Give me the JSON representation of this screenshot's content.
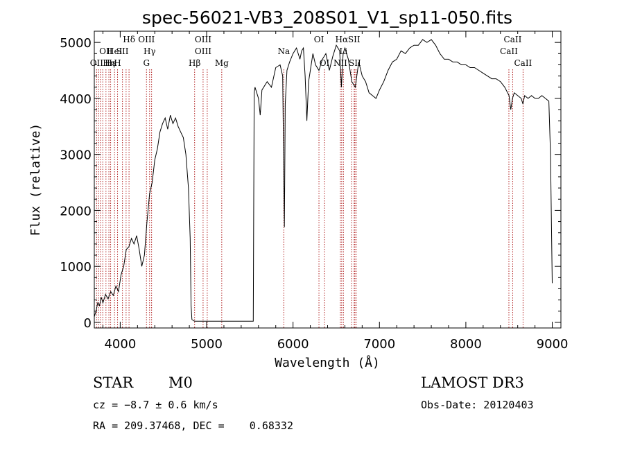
{
  "chart_data": {
    "type": "line",
    "title": "spec-56021-VB3_208S01_V1_sp11-050.fits",
    "xlabel": "Wavelength (Å)",
    "ylabel": "Flux (relative)",
    "xlim": [
      3700,
      9100
    ],
    "ylim": [
      -100,
      5200
    ],
    "xticks": [
      4000,
      5000,
      6000,
      7000,
      8000,
      9000
    ],
    "yticks": [
      0,
      1000,
      2000,
      3000,
      4000,
      5000
    ],
    "series": [
      {
        "x": [
          3700,
          3720,
          3740,
          3760,
          3780,
          3800,
          3830,
          3860,
          3890,
          3920,
          3950,
          3980,
          4010,
          4040,
          4070,
          4100,
          4130,
          4160,
          4190,
          4220,
          4250,
          4280,
          4310,
          4340,
          4370,
          4400,
          4430,
          4460,
          4490,
          4520,
          4550,
          4580,
          4610,
          4640,
          4670,
          4700,
          4730,
          4760,
          4790,
          4810,
          4820,
          4830,
          4860,
          5000,
          5200,
          5400,
          5540,
          5550,
          5560,
          5580,
          5600,
          5620,
          5640,
          5660,
          5700,
          5750,
          5800,
          5850,
          5880,
          5890,
          5900,
          5910,
          5930,
          5960,
          6000,
          6040,
          6080,
          6100,
          6120,
          6140,
          6160,
          6180,
          6200,
          6230,
          6260,
          6300,
          6340,
          6380,
          6420,
          6460,
          6500,
          6540,
          6560,
          6580,
          6600,
          6640,
          6680,
          6720,
          6760,
          6800,
          6840,
          6880,
          6920,
          6960,
          7000,
          7050,
          7100,
          7150,
          7200,
          7250,
          7300,
          7350,
          7400,
          7450,
          7500,
          7550,
          7600,
          7650,
          7700,
          7750,
          7800,
          7850,
          7900,
          7950,
          8000,
          8050,
          8100,
          8150,
          8200,
          8250,
          8300,
          8350,
          8400,
          8450,
          8500,
          8520,
          8540,
          8560,
          8600,
          8640,
          8660,
          8680,
          8720,
          8760,
          8800,
          8840,
          8880,
          8920,
          8960,
          8980,
          9000
        ],
        "y": [
          100,
          200,
          350,
          300,
          450,
          350,
          500,
          420,
          550,
          480,
          650,
          550,
          850,
          1000,
          1300,
          1350,
          1500,
          1400,
          1550,
          1300,
          1000,
          1200,
          1800,
          2300,
          2500,
          2900,
          3100,
          3400,
          3550,
          3650,
          3450,
          3700,
          3550,
          3650,
          3500,
          3400,
          3300,
          3000,
          2400,
          1500,
          300,
          50,
          20,
          20,
          20,
          20,
          20,
          4100,
          4200,
          4100,
          4000,
          3700,
          4150,
          4200,
          4300,
          4200,
          4550,
          4600,
          4400,
          3100,
          1700,
          3900,
          4500,
          4650,
          4800,
          4900,
          4700,
          4850,
          4900,
          4400,
          3600,
          4300,
          4500,
          4800,
          4600,
          4500,
          4700,
          4800,
          4500,
          4750,
          4950,
          4850,
          4200,
          4800,
          4900,
          4700,
          4300,
          4200,
          4650,
          4400,
          4300,
          4100,
          4050,
          4000,
          4150,
          4300,
          4500,
          4650,
          4700,
          4850,
          4800,
          4900,
          4950,
          4950,
          5050,
          5000,
          5050,
          4950,
          4800,
          4700,
          4700,
          4650,
          4650,
          4600,
          4600,
          4550,
          4550,
          4500,
          4450,
          4400,
          4350,
          4350,
          4300,
          4200,
          4050,
          3800,
          4000,
          4100,
          4050,
          4000,
          3900,
          4050,
          4000,
          4050,
          4000,
          4000,
          4050,
          4000,
          3950,
          3000,
          700
        ]
      }
    ],
    "lines": [
      {
        "w": 3727,
        "labels": [
          {
            "t": "OII",
            "row": 2
          }
        ]
      },
      {
        "w": 3750,
        "labels": []
      },
      {
        "w": 3771,
        "labels": []
      },
      {
        "w": 3798,
        "labels": []
      },
      {
        "w": 3835,
        "labels": [
          {
            "t": "OII",
            "row": 1
          }
        ]
      },
      {
        "w": 3869,
        "labels": [
          {
            "t": "Hη",
            "row": 2
          }
        ]
      },
      {
        "w": 3889,
        "labels": [
          {
            "t": "Hε",
            "row": 2
          }
        ]
      },
      {
        "w": 3934,
        "labels": [
          {
            "t": "HeI",
            "row": 1
          }
        ]
      },
      {
        "w": 3969,
        "labels": [
          {
            "t": "H",
            "row": 2
          }
        ]
      },
      {
        "w": 4026,
        "labels": [
          {
            "t": "SII",
            "row": 1
          }
        ]
      },
      {
        "w": 4068,
        "labels": []
      },
      {
        "w": 4102,
        "labels": [
          {
            "t": "Hδ",
            "row": 0
          }
        ]
      },
      {
        "w": 4304,
        "labels": [
          {
            "t": "OIII",
            "row": 0
          },
          {
            "t": "G",
            "row": 2
          }
        ]
      },
      {
        "w": 4340,
        "labels": [
          {
            "t": "Hγ",
            "row": 1
          }
        ]
      },
      {
        "w": 4363,
        "labels": []
      },
      {
        "w": 4861,
        "labels": [
          {
            "t": "Hβ",
            "row": 2
          }
        ]
      },
      {
        "w": 4959,
        "labels": [
          {
            "t": "OIII",
            "row": 0
          },
          {
            "t": "OIII",
            "row": 1
          }
        ]
      },
      {
        "w": 5007,
        "labels": []
      },
      {
        "w": 5175,
        "labels": [
          {
            "t": "Mg",
            "row": 2
          }
        ]
      },
      {
        "w": 5893,
        "labels": [
          {
            "t": "Na",
            "row": 1
          }
        ]
      },
      {
        "w": 6300,
        "labels": [
          {
            "t": "OI",
            "row": 0
          }
        ]
      },
      {
        "w": 6364,
        "labels": [
          {
            "t": "OI",
            "row": 2
          }
        ]
      },
      {
        "w": 6548,
        "labels": [
          {
            "t": "NII",
            "row": 2
          }
        ]
      },
      {
        "w": 6563,
        "labels": [
          {
            "t": "Hα",
            "row": 0
          }
        ]
      },
      {
        "w": 6583,
        "labels": [
          {
            "t": "Li",
            "row": 1
          }
        ]
      },
      {
        "w": 6678,
        "labels": []
      },
      {
        "w": 6707,
        "labels": [
          {
            "t": "SII",
            "row": 0
          }
        ]
      },
      {
        "w": 6716,
        "labels": [
          {
            "t": "SII",
            "row": 2
          }
        ]
      },
      {
        "w": 6731,
        "labels": []
      },
      {
        "w": 8498,
        "labels": [
          {
            "t": "CaII",
            "row": 1
          }
        ]
      },
      {
        "w": 8542,
        "labels": [
          {
            "t": "CaII",
            "row": 0
          }
        ]
      },
      {
        "w": 8662,
        "labels": [
          {
            "t": "CaII",
            "row": 2
          }
        ]
      }
    ]
  },
  "info": {
    "object_class": "STAR",
    "subclass": "M0",
    "survey": "LAMOST DR3",
    "cz": "cz = −8.7 ± 0.6 km/s",
    "obs_date": "Obs-Date: 20120403",
    "radec": "RA = 209.37468, DEC =    0.68332"
  },
  "colors": {
    "spectrum": "#000000",
    "lines": "#b22222",
    "axes": "#000000"
  }
}
